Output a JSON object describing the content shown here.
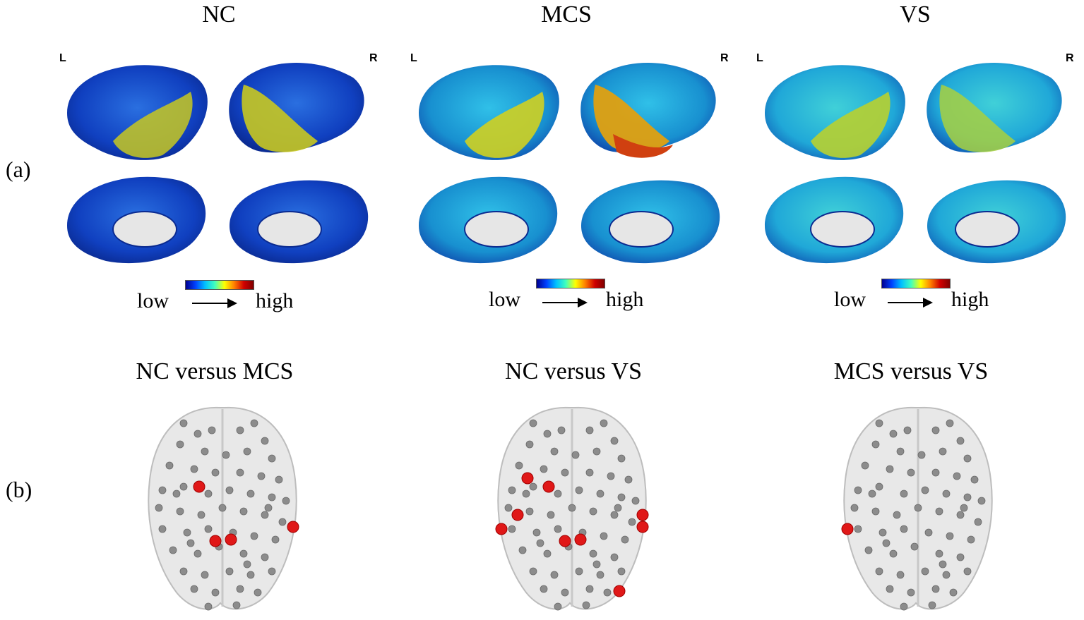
{
  "panels": {
    "a_label": "(a)",
    "b_label": "(b)"
  },
  "groups": [
    {
      "title": "NC",
      "left": "L",
      "right": "R",
      "low": "low",
      "high": "high"
    },
    {
      "title": "MCS",
      "left": "L",
      "right": "R",
      "low": "low",
      "high": "high"
    },
    {
      "title": "VS",
      "left": "L",
      "right": "R",
      "low": "low",
      "high": "high"
    }
  ],
  "comparisons": [
    {
      "title": "NC versus MCS"
    },
    {
      "title": "NC versus VS"
    },
    {
      "title": "MCS versus VS"
    }
  ],
  "colors": {
    "low": "#0030d0",
    "mid": "#20b0e0",
    "high": "#e0e000",
    "node": "#8c8c8c",
    "significant_node": "#e01818"
  }
}
